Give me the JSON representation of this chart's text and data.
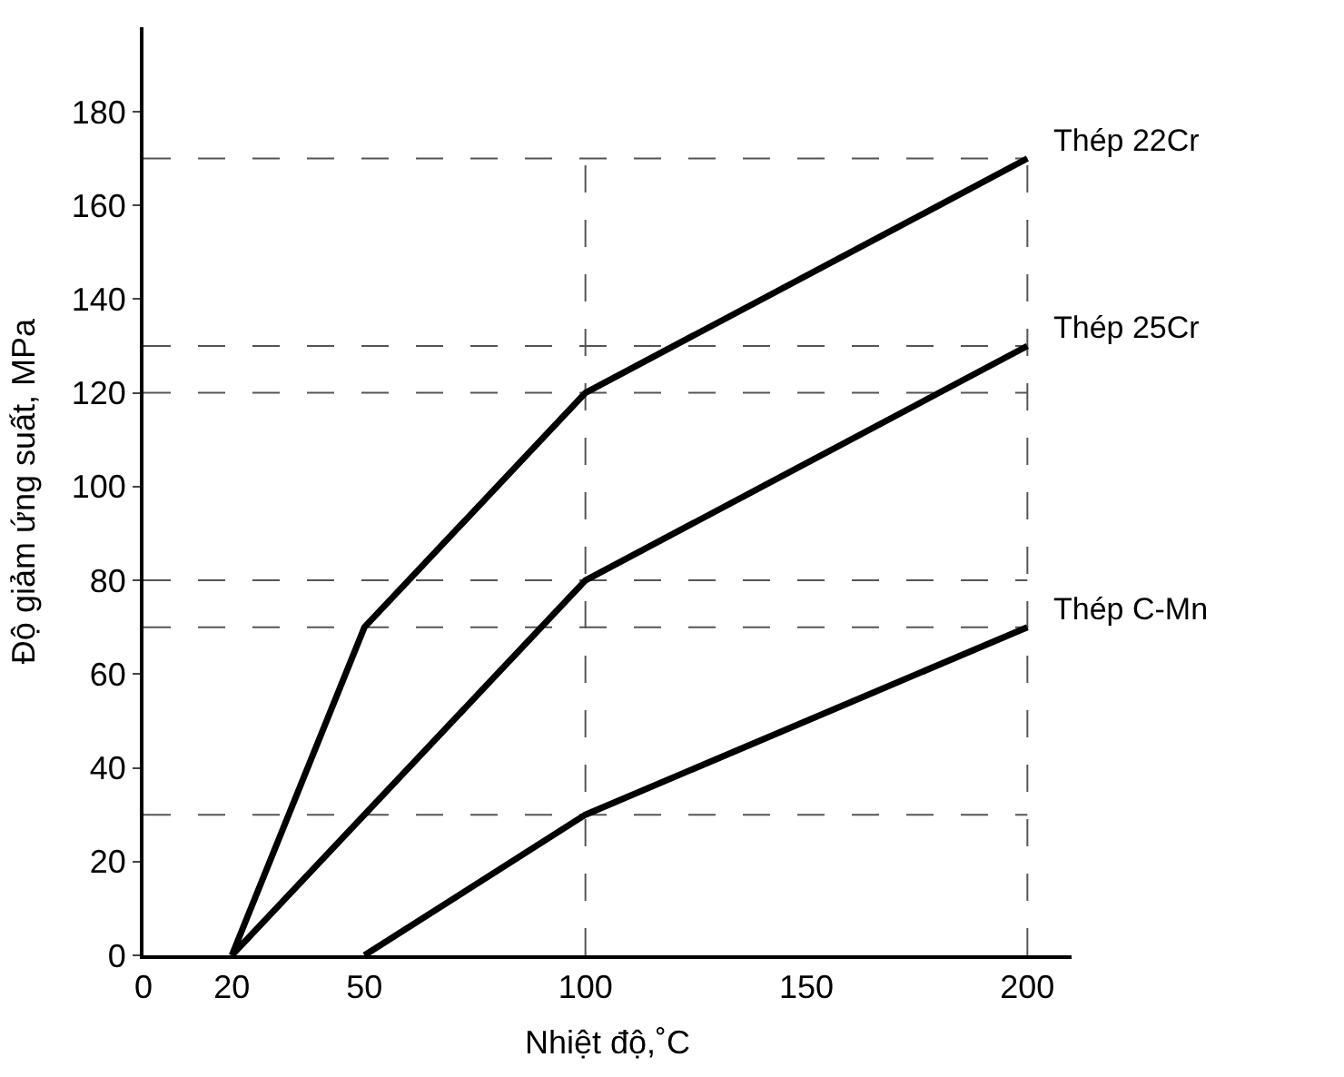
{
  "chart_data": {
    "type": "line",
    "xlabel": "Nhiệt độ,˚C",
    "ylabel": "Độ giảm ứng suất, MPa",
    "xlim": [
      0,
      210
    ],
    "xticks": [
      0,
      20,
      50,
      100,
      150,
      200
    ],
    "ylim": [
      0,
      198
    ],
    "yticks": [
      0,
      20,
      40,
      60,
      80,
      100,
      120,
      140,
      160,
      180
    ],
    "grid": false,
    "legend": false,
    "marker": "none",
    "line_style": "solid",
    "series": [
      {
        "name": "Thép 22Cr",
        "color": "#000000",
        "x": [
          20,
          50,
          100,
          200
        ],
        "values": [
          0,
          70,
          120,
          170
        ]
      },
      {
        "name": "Thép 25Cr",
        "color": "#000000",
        "x": [
          20,
          100,
          200
        ],
        "values": [
          0,
          80,
          130
        ]
      },
      {
        "name": "Thép C-Mn",
        "color": "#000000",
        "x": [
          50,
          100,
          200
        ],
        "values": [
          0,
          30,
          70
        ]
      }
    ],
    "ref_lines": [
      {
        "axis": "y",
        "value": 170,
        "color": "#555555",
        "line_style": "dashed"
      },
      {
        "axis": "y",
        "value": 130,
        "color": "#555555",
        "line_style": "dashed"
      },
      {
        "axis": "y",
        "value": 120,
        "color": "#555555",
        "line_style": "dashed"
      },
      {
        "axis": "y",
        "value": 80,
        "color": "#555555",
        "line_style": "dashed"
      },
      {
        "axis": "y",
        "value": 70,
        "color": "#555555",
        "line_style": "dashed"
      },
      {
        "axis": "y",
        "value": 30,
        "color": "#555555",
        "line_style": "dashed"
      },
      {
        "axis": "x",
        "value": 100,
        "color": "#555555",
        "line_style": "dashed"
      },
      {
        "axis": "x",
        "value": 200,
        "color": "#555555",
        "line_style": "dashed"
      }
    ]
  }
}
